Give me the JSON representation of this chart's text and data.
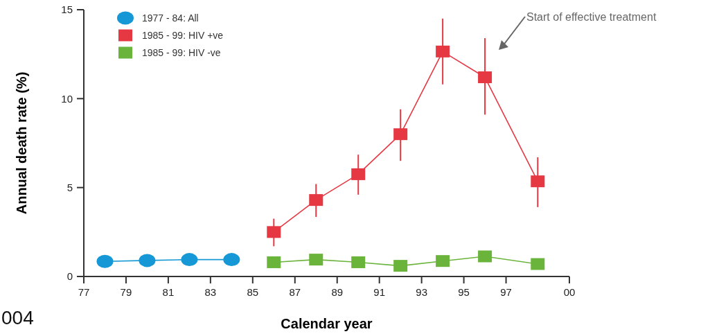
{
  "chart_data": {
    "type": "line",
    "xlabel": "Calendar year",
    "ylabel": "Annual death rate (%)",
    "xlim": [
      1977,
      2000
    ],
    "xticks": [
      {
        "value": 1977,
        "label": "77"
      },
      {
        "value": 1979,
        "label": "79"
      },
      {
        "value": 1981,
        "label": "81"
      },
      {
        "value": 1983,
        "label": "83"
      },
      {
        "value": 1985,
        "label": "85"
      },
      {
        "value": 1987,
        "label": "87"
      },
      {
        "value": 1989,
        "label": "89"
      },
      {
        "value": 1991,
        "label": "91"
      },
      {
        "value": 1993,
        "label": "93"
      },
      {
        "value": 1995,
        "label": "95"
      },
      {
        "value": 1997,
        "label": "97"
      },
      {
        "value": 2000,
        "label": "00"
      }
    ],
    "ylim": [
      0,
      15
    ],
    "yticks": [
      0,
      5,
      10,
      15
    ],
    "legend": "top left",
    "grid": false,
    "series": [
      {
        "name": "1977 - 84: All",
        "color": "#1598d5",
        "marker": "circle",
        "x": [
          1978,
          1980,
          1982,
          1984
        ],
        "values": [
          0.85,
          0.9,
          0.95,
          0.95
        ]
      },
      {
        "name": "1985 - 99: HIV +ve",
        "color": "#e63843",
        "marker": "square",
        "x": [
          1986,
          1988,
          1990,
          1992,
          1994,
          1996,
          1998.5
        ],
        "values": [
          2.5,
          4.3,
          5.75,
          8.0,
          12.65,
          11.2,
          5.35
        ],
        "errors": [
          [
            1.7,
            3.25
          ],
          [
            3.35,
            5.2
          ],
          [
            4.6,
            6.85
          ],
          [
            6.5,
            9.4
          ],
          [
            10.8,
            14.5
          ],
          [
            9.1,
            13.4
          ],
          [
            3.9,
            6.7
          ]
        ]
      },
      {
        "name": "1985 - 99: HIV -ve",
        "color": "#6bb43c",
        "marker": "square",
        "x": [
          1986,
          1988,
          1990,
          1992,
          1994,
          1996,
          1998.5
        ],
        "values": [
          0.8,
          0.95,
          0.8,
          0.6,
          0.87,
          1.13,
          0.7
        ]
      }
    ],
    "annotations": [
      "Start of effective treatment",
      "004"
    ]
  }
}
